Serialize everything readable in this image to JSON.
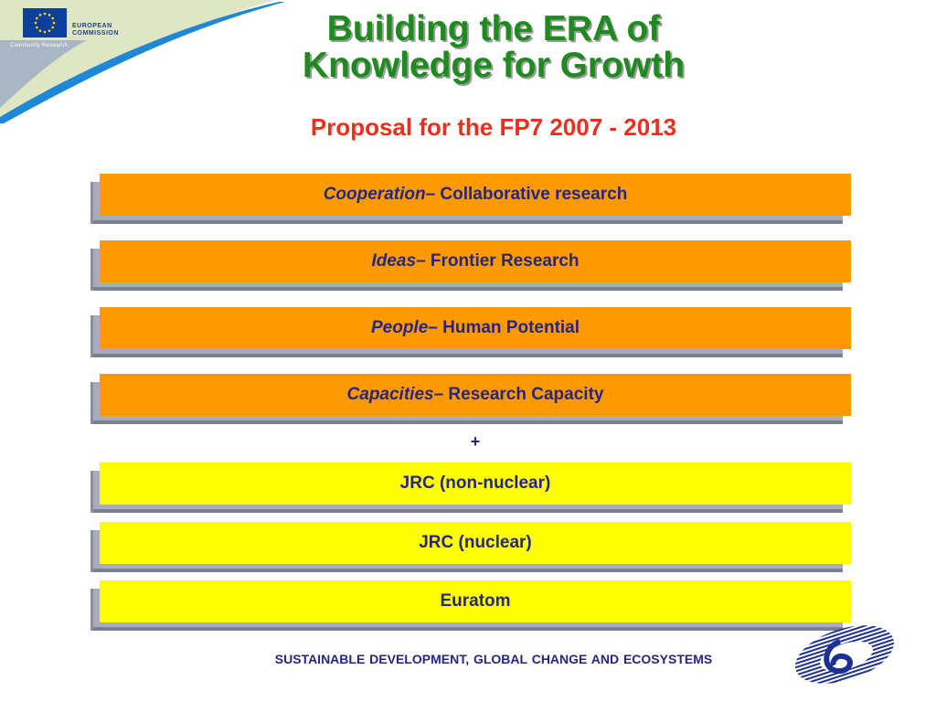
{
  "logo": {
    "commission_line1": "EUROPEAN",
    "commission_line2": "COMMISSION",
    "community_research": "Community Research"
  },
  "header": {
    "title_line1": "Building the ERA of",
    "title_line2": "Knowledge for Growth",
    "subtitle": "Proposal for the FP7 2007 - 2013"
  },
  "programmes": [
    {
      "italic": "Cooperation",
      "rest": " – Collaborative research"
    },
    {
      "italic": "Ideas",
      "rest": " – Frontier Research"
    },
    {
      "italic": "People",
      "rest": " – Human Potential"
    },
    {
      "italic": "Capacities",
      "rest": " – Research Capacity"
    }
  ],
  "plus": "+",
  "other_programmes": [
    "JRC (non-nuclear)",
    "JRC (nuclear)",
    "Euratom"
  ],
  "footer": {
    "text": "SUSTAINABLE DEVELOPMENT, GLOBAL CHANGE  AND ECOSYSTEMS"
  },
  "colors": {
    "title_green": "#1f8a1f",
    "subtitle_red": "#ee2e1d",
    "bar_orange": "#ff9900",
    "bar_yellow": "#ffff00",
    "text_navy": "#262680"
  }
}
